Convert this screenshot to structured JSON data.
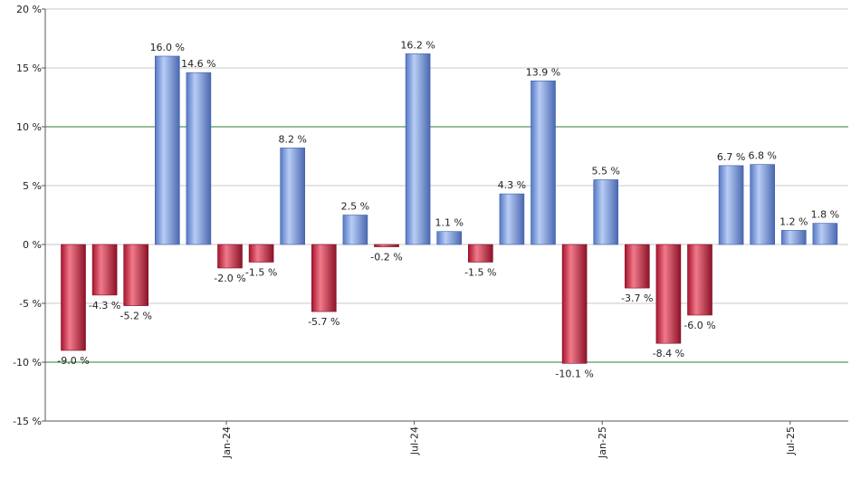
{
  "chart_data": {
    "type": "bar",
    "title": "",
    "xlabel": "",
    "ylabel": "",
    "ylim": [
      -15,
      20
    ],
    "y_ticks": [
      20,
      15,
      10,
      5,
      0,
      -5,
      -10,
      -15
    ],
    "y_tick_labels": [
      "20 %",
      "15 %",
      "10 %",
      "5 %",
      "0 %",
      "-5 %",
      "-10 %",
      "-15 %"
    ],
    "values": [
      -9.0,
      -4.3,
      -5.2,
      16.0,
      14.6,
      -2.0,
      -1.5,
      8.2,
      -5.7,
      2.5,
      -0.2,
      16.2,
      1.1,
      -1.5,
      4.3,
      13.9,
      -10.1,
      5.5,
      -3.7,
      -8.4,
      -6.0,
      6.7,
      6.8,
      1.2,
      1.8
    ],
    "value_labels": [
      "-9.0 %",
      "-4.3 %",
      "-5.2 %",
      "16.0 %",
      "14.6 %",
      "-2.0 %",
      "-1.5 %",
      "8.2 %",
      "-5.7 %",
      "2.5 %",
      "-0.2 %",
      "16.2 %",
      "1.1 %",
      "-1.5 %",
      "4.3 %",
      "13.9 %",
      "-10.1 %",
      "5.5 %",
      "-3.7 %",
      "-8.4 %",
      "-6.0 %",
      "6.7 %",
      "6.8 %",
      "1.2 %",
      "1.8 %"
    ],
    "x_tick_labels": [
      {
        "label": "Jan-24",
        "index": 5
      },
      {
        "label": "Jul-24",
        "index": 11
      },
      {
        "label": "Jan-25",
        "index": 17
      },
      {
        "label": "Jul-25",
        "index": 23
      }
    ],
    "reference_lines": [
      10,
      -10
    ],
    "grid": true,
    "colors": {
      "positive_light": "#c8d8f8",
      "positive_mid": "#7a9ee0",
      "positive_dark": "#3d5fa8",
      "negative_light": "#f07a8a",
      "negative_mid": "#d02a48",
      "negative_dark": "#7a0f22",
      "reference_line": "#2e7d32",
      "grid": "#c8c8c8",
      "axis": "#555555"
    }
  }
}
